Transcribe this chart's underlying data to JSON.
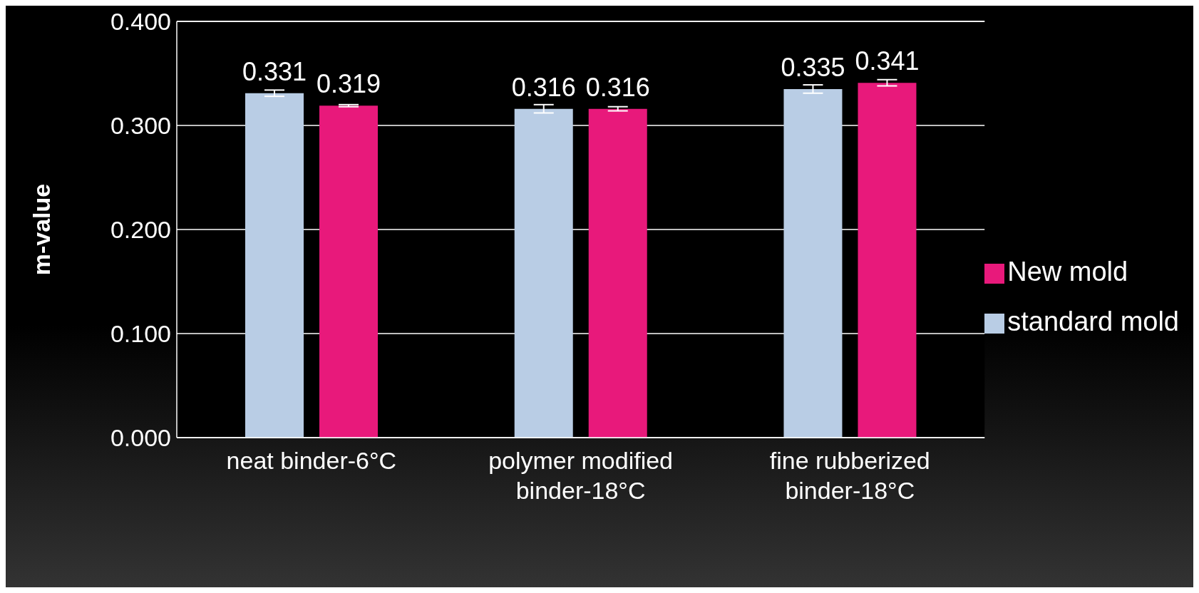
{
  "chart_data": {
    "type": "bar",
    "ylabel": "m-value",
    "categories": [
      "neat binder-6°C",
      "polymer modified binder-18°C",
      "fine rubberized binder-18°C"
    ],
    "series": [
      {
        "name": "standard mold",
        "color": "#b9cde5",
        "values": [
          0.331,
          0.316,
          0.335
        ],
        "errors": [
          0.003,
          0.004,
          0.004
        ]
      },
      {
        "name": "New mold",
        "color": "#e8197b",
        "values": [
          0.319,
          0.316,
          0.341
        ],
        "errors": [
          0.001,
          0.002,
          0.003
        ]
      }
    ],
    "ylim": [
      0,
      0.4
    ],
    "yticks": [
      {
        "value": 0,
        "label": "0.000"
      },
      {
        "value": 0.1,
        "label": "0.100"
      },
      {
        "value": 0.2,
        "label": "0.200"
      },
      {
        "value": 0.3,
        "label": "0.300"
      },
      {
        "value": 0.4,
        "label": "0.400"
      }
    ],
    "grid": "y",
    "legend": "right",
    "data_labels": true
  }
}
